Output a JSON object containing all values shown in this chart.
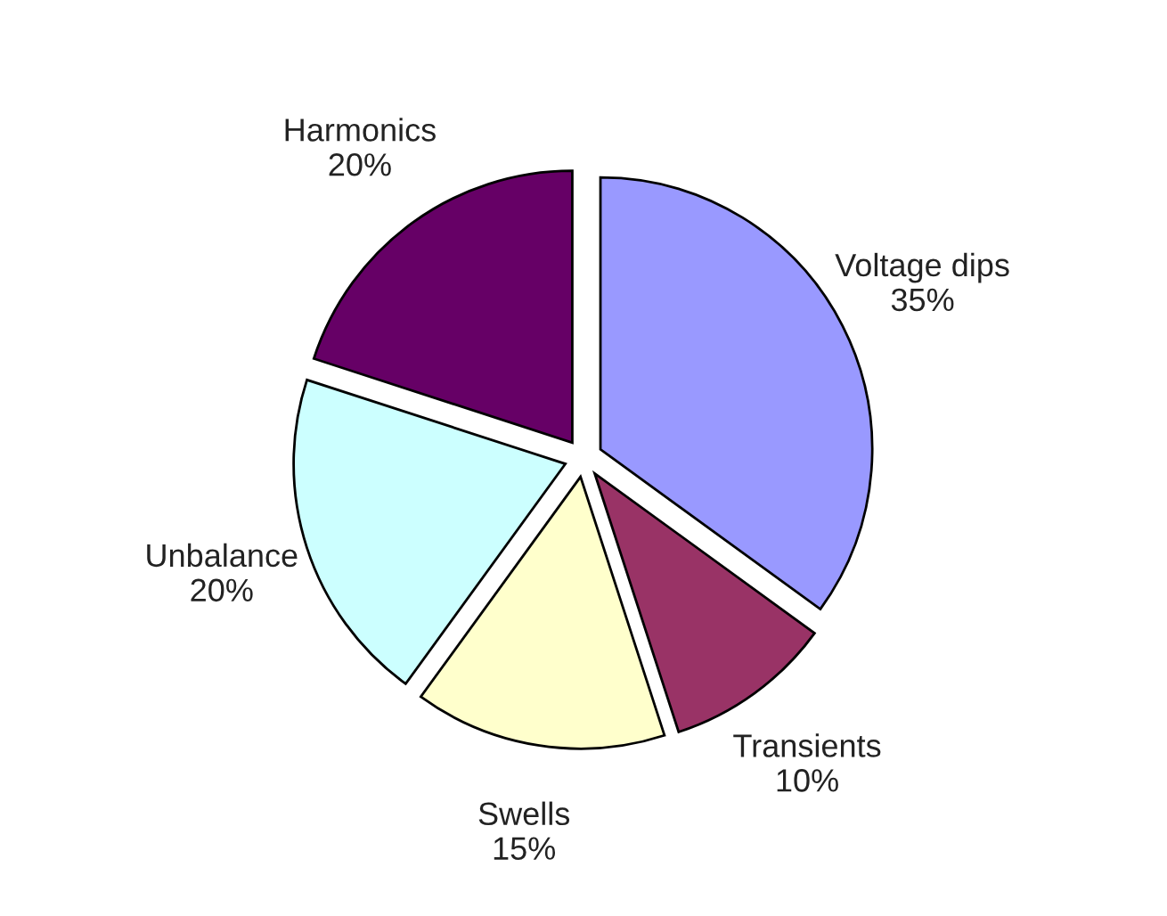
{
  "chart_data": {
    "type": "pie",
    "categories": [
      "Voltage dips",
      "Transients",
      "Swells",
      "Unbalance",
      "Harmonics"
    ],
    "values": [
      35,
      10,
      15,
      20,
      20
    ],
    "value_labels": [
      "35%",
      "10%",
      "15%",
      "20%",
      "20%"
    ],
    "colors": [
      "#9999ff",
      "#993366",
      "#ffffcc",
      "#ccffff",
      "#660066"
    ]
  }
}
